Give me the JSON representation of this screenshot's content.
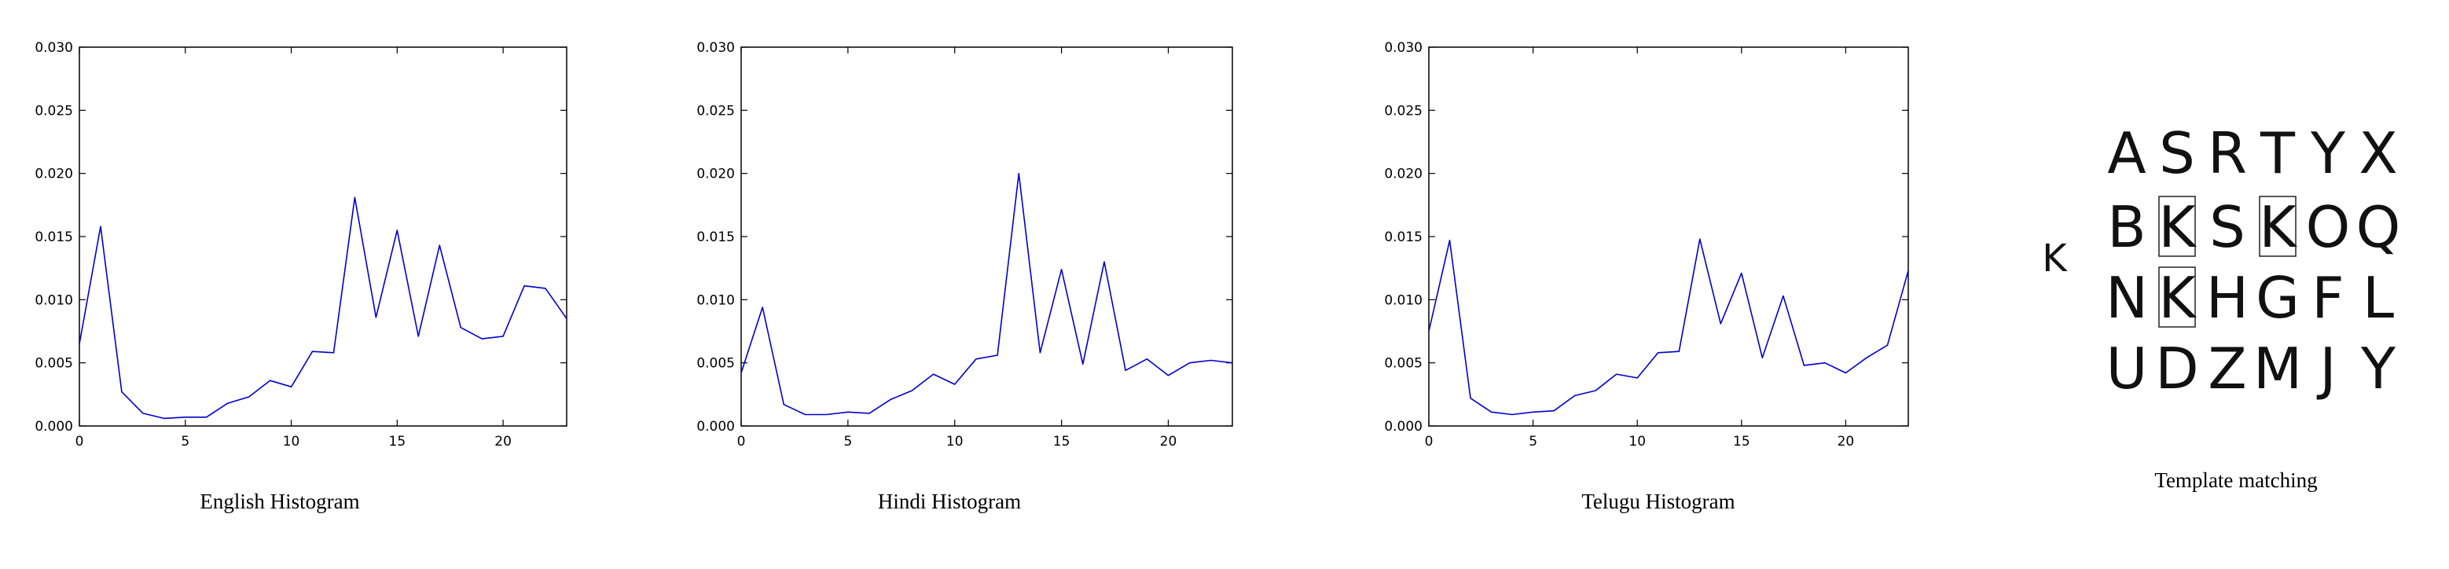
{
  "chart_data": [
    {
      "type": "line",
      "title": "English Histogram",
      "xlim": [
        0,
        23
      ],
      "ylim": [
        0,
        0.03
      ],
      "xticks": [
        0,
        5,
        10,
        15,
        20
      ],
      "yticks": [
        "0.000",
        "0.005",
        "0.010",
        "0.015",
        "0.020",
        "0.025",
        "0.030"
      ],
      "line_color": "#0000cc",
      "grid": false,
      "x": [
        0,
        1,
        2,
        3,
        4,
        5,
        6,
        7,
        8,
        9,
        10,
        11,
        12,
        13,
        14,
        15,
        16,
        17,
        18,
        19,
        20,
        21,
        22,
        23
      ],
      "series": [
        {
          "values": [
            0.0065,
            0.0158,
            0.0027,
            0.001,
            0.0006,
            0.0007,
            0.0007,
            0.0018,
            0.0023,
            0.0036,
            0.0031,
            0.0059,
            0.0058,
            0.0181,
            0.0086,
            0.0155,
            0.0071,
            0.0143,
            0.0078,
            0.0069,
            0.0071,
            0.0111,
            0.0109,
            0.0085
          ]
        }
      ]
    },
    {
      "type": "line",
      "title": "Hindi Histogram",
      "xlim": [
        0,
        23
      ],
      "ylim": [
        0,
        0.03
      ],
      "xticks": [
        0,
        5,
        10,
        15,
        20
      ],
      "yticks": [
        "0.000",
        "0.005",
        "0.010",
        "0.015",
        "0.020",
        "0.025",
        "0.030"
      ],
      "line_color": "#0000cc",
      "grid": false,
      "x": [
        0,
        1,
        2,
        3,
        4,
        5,
        6,
        7,
        8,
        9,
        10,
        11,
        12,
        13,
        14,
        15,
        16,
        17,
        18,
        19,
        20,
        21,
        22,
        23
      ],
      "series": [
        {
          "values": [
            0.0042,
            0.0094,
            0.0017,
            0.0009,
            0.0009,
            0.0011,
            0.001,
            0.0021,
            0.0028,
            0.0041,
            0.0033,
            0.0053,
            0.0056,
            0.02,
            0.0058,
            0.0124,
            0.0049,
            0.013,
            0.0044,
            0.0053,
            0.004,
            0.005,
            0.0052,
            0.005
          ]
        }
      ]
    },
    {
      "type": "line",
      "title": "Telugu Histogram",
      "xlim": [
        0,
        23
      ],
      "ylim": [
        0,
        0.03
      ],
      "xticks": [
        0,
        5,
        10,
        15,
        20
      ],
      "yticks": [
        "0.000",
        "0.005",
        "0.010",
        "0.015",
        "0.020",
        "0.025",
        "0.030"
      ],
      "line_color": "#0000cc",
      "grid": false,
      "x": [
        0,
        1,
        2,
        3,
        4,
        5,
        6,
        7,
        8,
        9,
        10,
        11,
        12,
        13,
        14,
        15,
        16,
        17,
        18,
        19,
        20,
        21,
        22,
        23
      ],
      "series": [
        {
          "values": [
            0.0075,
            0.0147,
            0.0022,
            0.0011,
            0.0009,
            0.0011,
            0.0012,
            0.0024,
            0.0028,
            0.0041,
            0.0038,
            0.0058,
            0.0059,
            0.0148,
            0.0081,
            0.0121,
            0.0054,
            0.0103,
            0.0048,
            0.005,
            0.0042,
            0.0054,
            0.0064,
            0.0123
          ]
        }
      ]
    }
  ],
  "template_matching": {
    "caption": "Template matching",
    "query_letter": "K",
    "rows": [
      [
        "A",
        "S",
        "R",
        "T",
        "Y",
        "X"
      ],
      [
        "B",
        "K",
        "S",
        "K",
        "O",
        "Q"
      ],
      [
        "N",
        "K",
        "H",
        "G",
        "F",
        "L"
      ],
      [
        "U",
        "D",
        "Z",
        "M",
        "J",
        "Y"
      ]
    ],
    "matches": [
      [
        1,
        1
      ],
      [
        1,
        3
      ],
      [
        2,
        1
      ]
    ]
  }
}
